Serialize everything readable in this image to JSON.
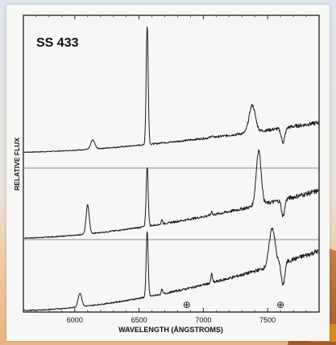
{
  "chart_data": {
    "type": "line",
    "title": "SS 433",
    "xlabel": "WAVELENGTH (ÅNGSTROMS)",
    "ylabel": "RELATIVE FLUX",
    "xlim": [
      5600,
      7900
    ],
    "x_ticks": [
      6000,
      6500,
      7000,
      7500
    ],
    "x_tick_labels": [
      "6000",
      "6500",
      "7000",
      "7500"
    ],
    "grid": false,
    "telluric_markers": [
      {
        "x": 6870,
        "symbol": "⊕"
      },
      {
        "x": 7600,
        "symbol": "⊕"
      }
    ],
    "series": [
      {
        "continuum": {
          "start": 0.06,
          "end": 0.52,
          "power": 1.55
        },
        "lines": [
          {
            "center": 6563,
            "height": 1.85,
            "width": 11
          },
          {
            "center": 6140,
            "height": 0.14,
            "width": 22
          },
          {
            "center": 7380,
            "height": 0.42,
            "width": 34
          },
          {
            "center": 7065,
            "height": 0.03,
            "width": 8
          },
          {
            "center": 6678,
            "height": 0.02,
            "width": 7
          }
        ],
        "absorption": [
          {
            "center": 7620,
            "depth": 0.22,
            "width": 20
          }
        ]
      },
      {
        "continuum": {
          "start": 0.0,
          "end": 0.62,
          "power": 1.6
        },
        "lines": [
          {
            "center": 6563,
            "height": 0.78,
            "width": 11
          },
          {
            "center": 6100,
            "height": 0.38,
            "width": 17
          },
          {
            "center": 7430,
            "height": 0.72,
            "width": 27
          },
          {
            "center": 6678,
            "height": 0.06,
            "width": 7
          },
          {
            "center": 7065,
            "height": 0.05,
            "width": 7
          }
        ],
        "absorption": [
          {
            "center": 7620,
            "depth": 0.22,
            "width": 17
          }
        ]
      },
      {
        "continuum": {
          "start": 0.0,
          "end": 0.78,
          "power": 1.7
        },
        "lines": [
          {
            "center": 6563,
            "height": 0.85,
            "width": 11
          },
          {
            "center": 6040,
            "height": 0.18,
            "width": 20
          },
          {
            "center": 7535,
            "height": 0.5,
            "width": 32
          },
          {
            "center": 6678,
            "height": 0.06,
            "width": 7
          },
          {
            "center": 7065,
            "height": 0.12,
            "width": 8
          }
        ],
        "absorption": [
          {
            "center": 7620,
            "depth": 0.3,
            "width": 18
          }
        ]
      }
    ]
  }
}
